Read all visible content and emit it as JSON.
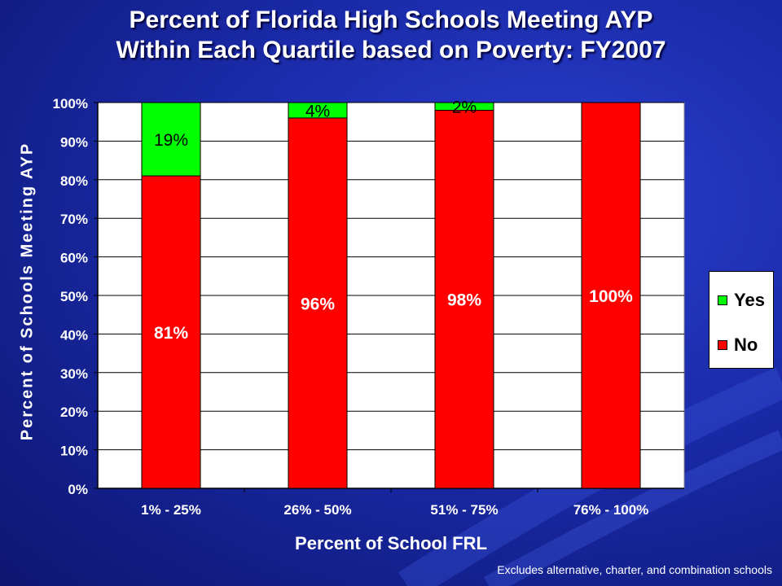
{
  "title": {
    "line1": "Percent of Florida High Schools Meeting AYP",
    "line2": "Within Each Quartile based on Poverty: FY2007"
  },
  "footnote": "Excludes alternative, charter, and combination schools",
  "colors": {
    "yes": "#00ff00",
    "no": "#ff0000",
    "plot_bg": "#ffffff"
  },
  "chart_data": {
    "type": "bar",
    "stacked": true,
    "title": "Percent of Florida High Schools Meeting AYP Within Each Quartile based on Poverty: FY2007",
    "xlabel": "Percent of School FRL",
    "ylabel": "Percent of Schools Meeting AYP",
    "categories": [
      "1% - 25%",
      "26% - 50%",
      "51% - 75%",
      "76% - 100%"
    ],
    "series": [
      {
        "name": "No",
        "values": [
          81,
          96,
          98,
          100
        ],
        "labels": [
          "81%",
          "96%",
          "98%",
          "100%"
        ],
        "color": "#ff0000"
      },
      {
        "name": "Yes",
        "values": [
          19,
          4,
          2,
          0
        ],
        "labels": [
          "19%",
          "4%",
          "2%",
          ""
        ],
        "color": "#00ff00"
      }
    ],
    "ylim": [
      0,
      100
    ],
    "yticks": [
      "0%",
      "10%",
      "20%",
      "30%",
      "40%",
      "50%",
      "60%",
      "70%",
      "80%",
      "90%",
      "100%"
    ],
    "grid": true,
    "legend_position": "right",
    "legend": [
      "Yes",
      "No"
    ]
  }
}
